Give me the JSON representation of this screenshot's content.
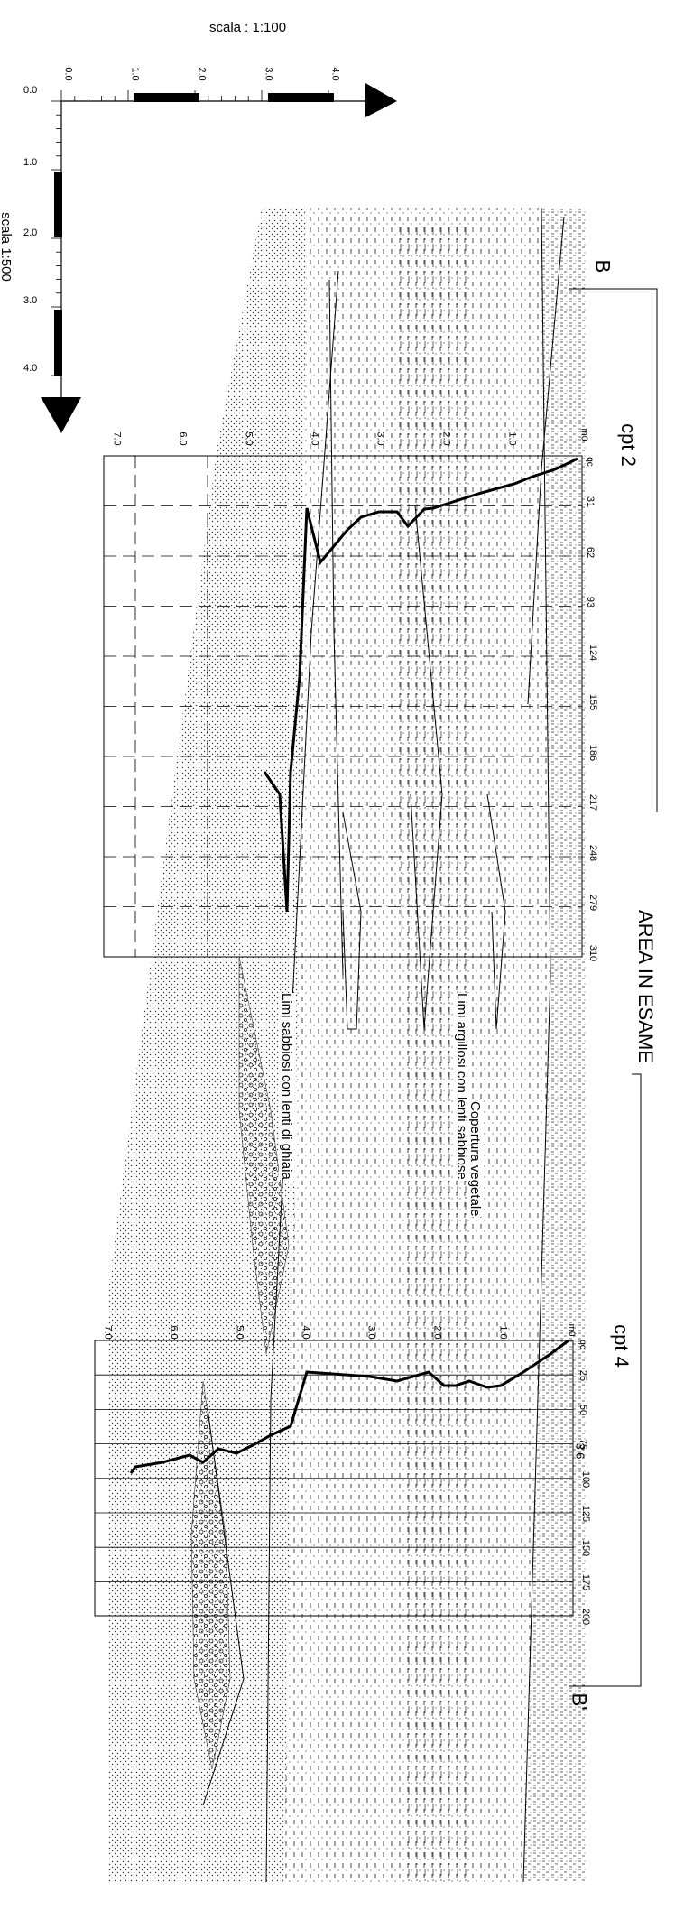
{
  "scale_top": "scala : 1:100",
  "scale_left": "scala 1:500",
  "axis_top_ticks": [
    "0.0",
    "1.0",
    "2.0",
    "3.0",
    "4.0"
  ],
  "axis_left_ticks": [
    "0.0",
    "1.0",
    "2.0",
    "3.0",
    "4.0"
  ],
  "section_start": "B",
  "section_end": "B'",
  "area_label": "AREA IN ESAME",
  "cpt2": {
    "title": "cpt 2",
    "origin": "m0",
    "qc_label": "qc",
    "depth_ticks": [
      "1.0",
      "2.0",
      "3.0",
      "4.0",
      "5.0",
      "6.0",
      "7.0"
    ],
    "qc_ticks": [
      "31",
      "62",
      "93",
      "124",
      "155",
      "186",
      "217",
      "248",
      "279",
      "310"
    ]
  },
  "cpt4": {
    "title": "cpt 4",
    "origin": "m0",
    "qc_label": "qc",
    "depth_ticks": [
      "1.0",
      "2.0",
      "3.0",
      "4.0",
      "5.0",
      "6.0",
      "7.0"
    ],
    "qc_ticks": [
      "25",
      "50",
      "75",
      "100",
      "125",
      "150",
      "175",
      "200"
    ],
    "overlap_label": "3.6"
  },
  "layers": [
    {
      "label": "Copertura vegetale"
    },
    {
      "label": "Limi argillosi con lenti sabbiose"
    },
    {
      "label": "Limi sabbiosi con lenti di ghiaia"
    }
  ]
}
